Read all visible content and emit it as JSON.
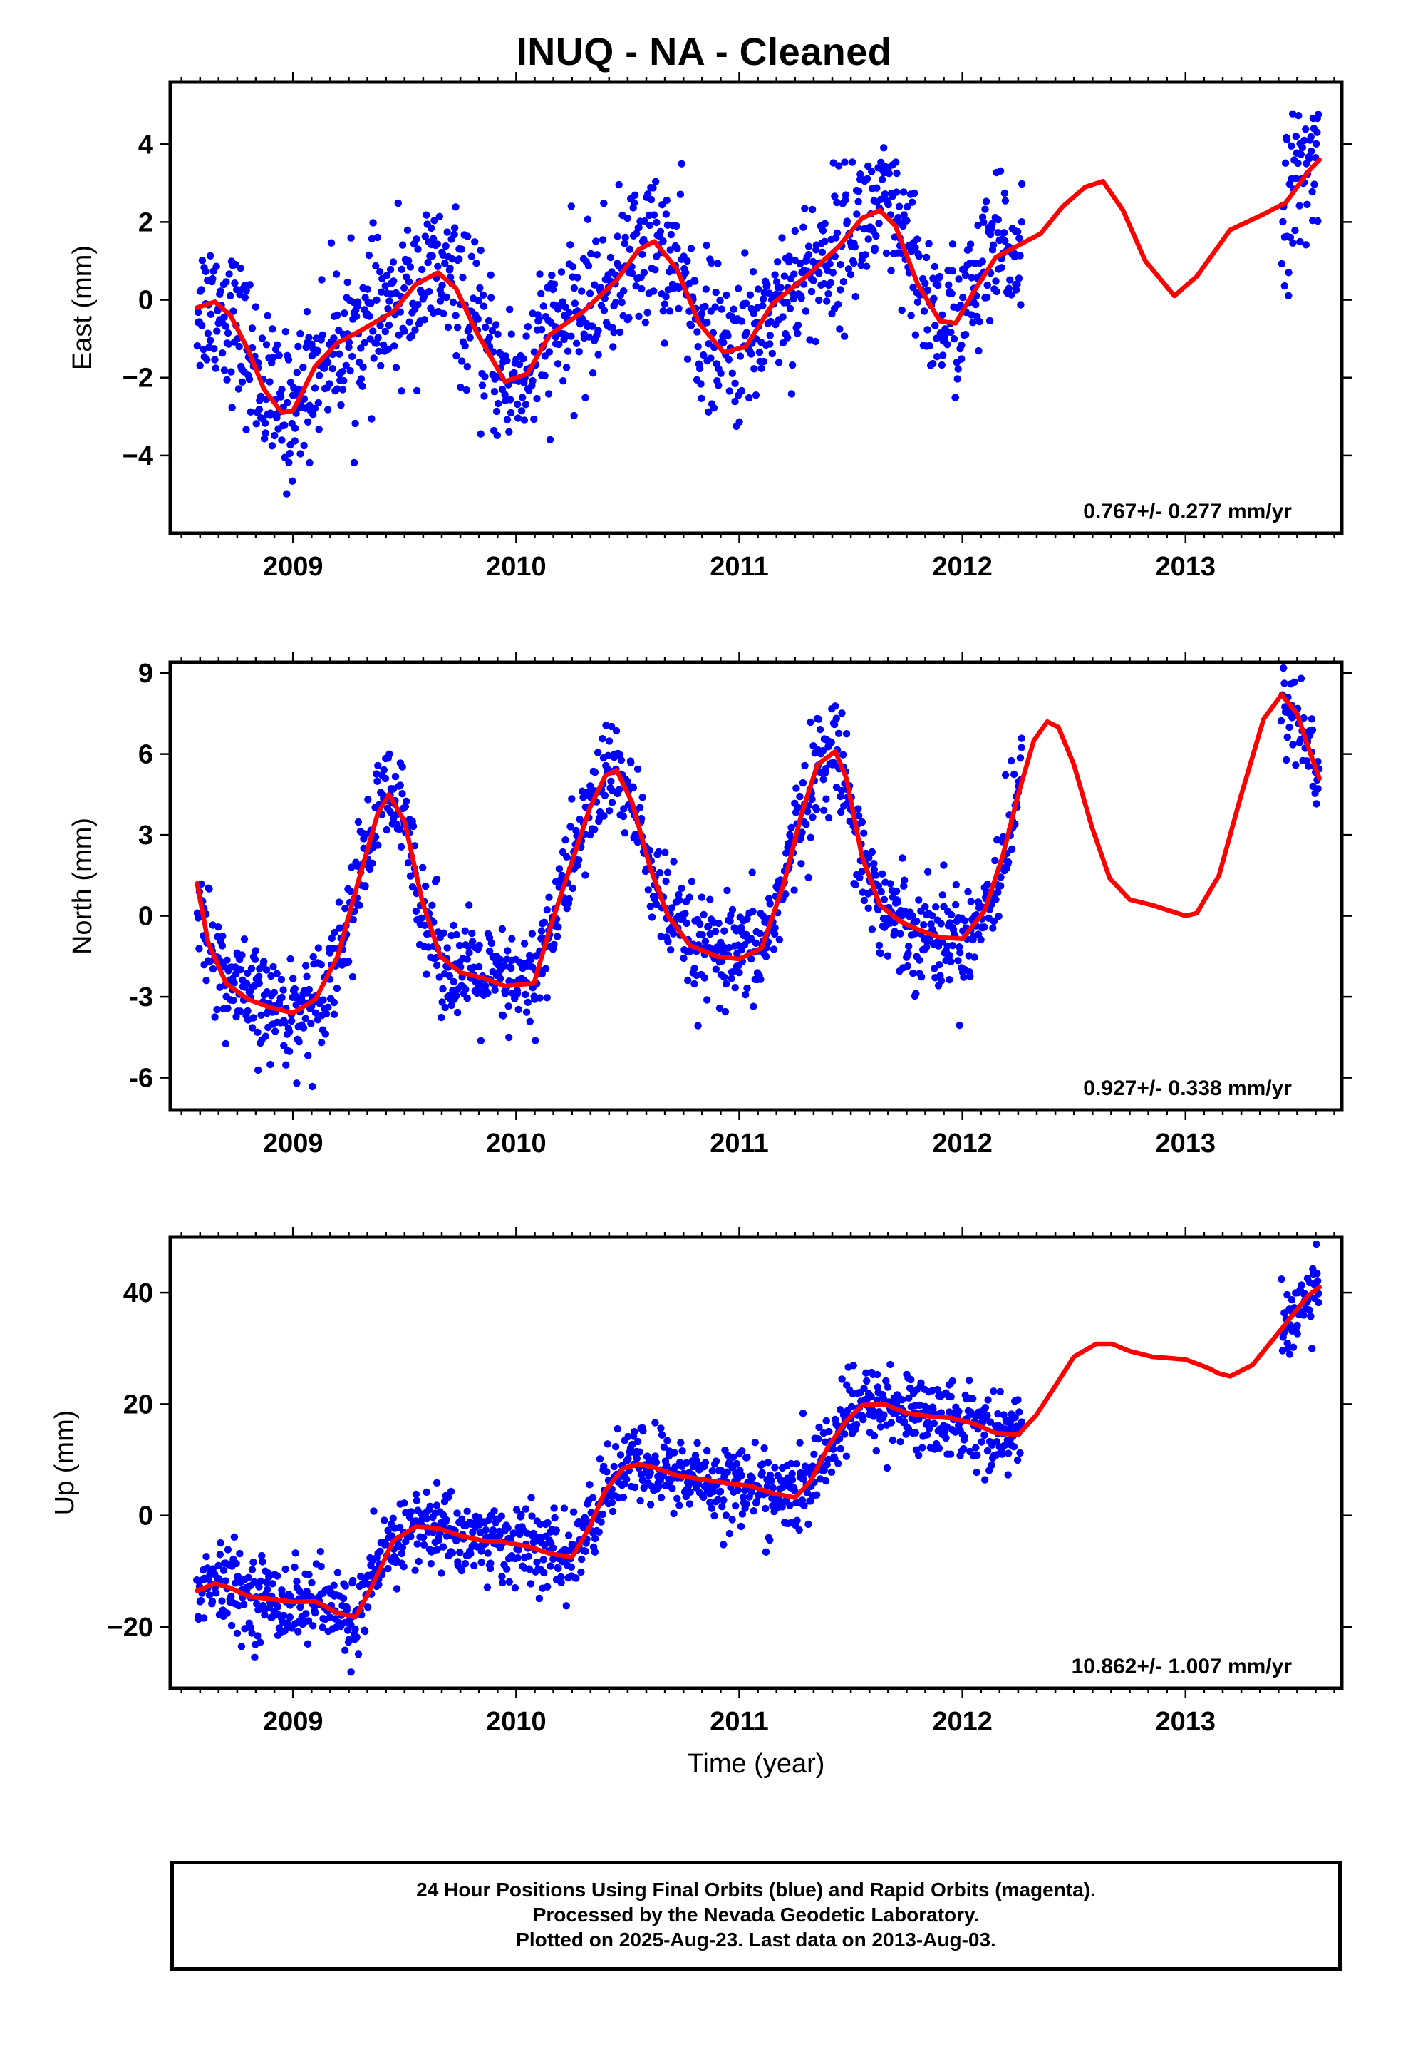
{
  "title": "INUQ  - NA - Cleaned",
  "xlabel": "Time (year)",
  "footer": {
    "line1": "24 Hour Positions Using Final Orbits (blue) and Rapid Orbits (magenta).",
    "line2": "Processed by the Nevada Geodetic Laboratory.",
    "line3": "Plotted on 2025-Aug-23. Last data on 2013-Aug-03."
  },
  "colors": {
    "points": "#0000ff",
    "fit": "#ff0000",
    "frame": "#000000"
  },
  "chart_data": [
    {
      "type": "scatter",
      "ylabel": "East (mm)",
      "xlim": [
        2008.45,
        2013.7
      ],
      "ylim": [
        -6.0,
        5.6
      ],
      "xticks": [
        2009,
        2010,
        2011,
        2012,
        2013
      ],
      "yticks": [
        -4,
        -2,
        0,
        2,
        4
      ],
      "ytick_labels": [
        "−4",
        "−2",
        "0",
        "2",
        "4"
      ],
      "rate_label": "0.767+/- 0.277 mm/yr",
      "point_coverage": [
        [
          2008.57,
          2012.27
        ],
        [
          2013.43,
          2013.6
        ]
      ],
      "scatter_sd": 0.95,
      "series": [
        {
          "role": "fit",
          "x": [
            2008.57,
            2008.65,
            2008.72,
            2008.8,
            2008.87,
            2008.95,
            2009.0,
            2009.1,
            2009.2,
            2009.3,
            2009.45,
            2009.55,
            2009.65,
            2009.73,
            2009.82,
            2009.95,
            2010.05,
            2010.15,
            2010.3,
            2010.45,
            2010.55,
            2010.62,
            2010.72,
            2010.82,
            2010.93,
            2011.03,
            2011.15,
            2011.3,
            2011.45,
            2011.55,
            2011.63,
            2011.7,
            2011.8,
            2011.9,
            2011.97,
            2012.05,
            2012.15,
            2012.25,
            2012.35,
            2012.45,
            2012.55,
            2012.63,
            2012.72,
            2012.82,
            2012.95,
            2013.05,
            2013.2,
            2013.35,
            2013.45,
            2013.55,
            2013.6
          ],
          "y": [
            -0.2,
            -0.05,
            -0.4,
            -1.3,
            -2.3,
            -2.9,
            -2.85,
            -1.7,
            -1.1,
            -0.8,
            -0.3,
            0.4,
            0.7,
            0.3,
            -0.8,
            -2.1,
            -1.9,
            -0.9,
            -0.3,
            0.5,
            1.3,
            1.5,
            0.8,
            -0.6,
            -1.35,
            -1.2,
            -0.1,
            0.6,
            1.4,
            2.1,
            2.3,
            1.9,
            0.4,
            -0.55,
            -0.6,
            0.2,
            1.1,
            1.4,
            1.7,
            2.4,
            2.9,
            3.05,
            2.3,
            1.0,
            0.1,
            0.6,
            1.8,
            2.2,
            2.5,
            3.3,
            3.6
          ]
        }
      ]
    },
    {
      "type": "scatter",
      "ylabel": "North (mm)",
      "xlim": [
        2008.45,
        2013.7
      ],
      "ylim": [
        -7.2,
        9.4
      ],
      "xticks": [
        2009,
        2010,
        2011,
        2012,
        2013
      ],
      "yticks": [
        -6,
        -3,
        0,
        3,
        6,
        9
      ],
      "ytick_labels": [
        "-6",
        "-3",
        "0",
        "3",
        "6",
        "9"
      ],
      "rate_label": "0.927+/- 0.338 mm/yr",
      "point_coverage": [
        [
          2008.57,
          2012.27
        ],
        [
          2013.43,
          2013.6
        ]
      ],
      "scatter_sd": 0.95,
      "series": [
        {
          "role": "fit",
          "x": [
            2008.57,
            2008.62,
            2008.7,
            2008.8,
            2008.9,
            2009.0,
            2009.1,
            2009.2,
            2009.3,
            2009.38,
            2009.43,
            2009.5,
            2009.58,
            2009.66,
            2009.75,
            2009.85,
            2009.95,
            2010.08,
            2010.15,
            2010.25,
            2010.33,
            2010.4,
            2010.45,
            2010.52,
            2010.6,
            2010.68,
            2010.78,
            2010.9,
            2011.0,
            2011.1,
            2011.2,
            2011.28,
            2011.35,
            2011.43,
            2011.48,
            2011.55,
            2011.63,
            2011.72,
            2011.8,
            2011.9,
            2012.0,
            2012.1,
            2012.18,
            2012.25,
            2012.32,
            2012.38,
            2012.43,
            2012.5,
            2012.58,
            2012.66,
            2012.75,
            2012.85,
            2013.0,
            2013.05,
            2013.15,
            2013.25,
            2013.35,
            2013.43,
            2013.5,
            2013.56,
            2013.6
          ],
          "y": [
            1.2,
            -1.0,
            -2.5,
            -3.1,
            -3.4,
            -3.6,
            -3.1,
            -1.5,
            1.5,
            3.8,
            4.5,
            3.5,
            0.5,
            -1.5,
            -2.1,
            -2.3,
            -2.6,
            -2.5,
            -0.5,
            2.0,
            4.0,
            5.2,
            5.4,
            4.2,
            1.8,
            0.0,
            -1.1,
            -1.5,
            -1.6,
            -1.2,
            1.2,
            3.8,
            5.6,
            6.1,
            5.1,
            2.2,
            0.4,
            -0.2,
            -0.5,
            -0.8,
            -0.85,
            0.2,
            2.2,
            4.5,
            6.5,
            7.2,
            7.0,
            5.6,
            3.3,
            1.4,
            0.6,
            0.4,
            0.0,
            0.1,
            1.5,
            4.5,
            7.3,
            8.2,
            7.5,
            6.0,
            5.1
          ]
        }
      ]
    },
    {
      "type": "scatter",
      "ylabel": "Up (mm)",
      "xlim": [
        2008.45,
        2013.7
      ],
      "ylim": [
        -31,
        50
      ],
      "xticks": [
        2009,
        2010,
        2011,
        2012,
        2013
      ],
      "yticks": [
        -20,
        0,
        20,
        40
      ],
      "ytick_labels": [
        "−20",
        "0",
        "20",
        "40"
      ],
      "rate_label": "10.862+/- 1.007 mm/yr",
      "point_coverage": [
        [
          2008.57,
          2012.27
        ],
        [
          2013.43,
          2013.6
        ]
      ],
      "scatter_sd": 3.6,
      "series": [
        {
          "role": "fit",
          "x": [
            2008.57,
            2008.65,
            2008.72,
            2008.8,
            2008.9,
            2009.0,
            2009.1,
            2009.2,
            2009.28,
            2009.35,
            2009.45,
            2009.55,
            2009.65,
            2009.75,
            2009.85,
            2009.95,
            2010.05,
            2010.15,
            2010.25,
            2010.33,
            2010.4,
            2010.48,
            2010.55,
            2010.62,
            2010.72,
            2010.85,
            2010.95,
            2011.05,
            2011.15,
            2011.25,
            2011.32,
            2011.4,
            2011.48,
            2011.55,
            2011.65,
            2011.75,
            2011.85,
            2011.95,
            2012.05,
            2012.15,
            2012.25,
            2012.33,
            2012.42,
            2012.5,
            2012.6,
            2012.67,
            2012.75,
            2012.85,
            2013.0,
            2013.1,
            2013.15,
            2013.2,
            2013.3,
            2013.4,
            2013.5,
            2013.55,
            2013.6
          ],
          "y": [
            -13.5,
            -12.2,
            -13.0,
            -14.5,
            -15.0,
            -15.5,
            -15.4,
            -17.5,
            -18.2,
            -13.0,
            -4.5,
            -2.0,
            -2.3,
            -3.6,
            -4.5,
            -4.8,
            -5.5,
            -6.8,
            -7.5,
            -2.0,
            4.5,
            8.5,
            9.2,
            8.6,
            7.2,
            6.4,
            5.8,
            5.3,
            4.0,
            3.2,
            6.2,
            12.5,
            17.0,
            19.8,
            20.0,
            18.4,
            17.8,
            17.5,
            16.5,
            14.8,
            14.5,
            18.0,
            23.5,
            28.5,
            30.8,
            30.8,
            29.5,
            28.5,
            28.0,
            26.5,
            25.5,
            25.0,
            27.0,
            32.0,
            37.0,
            39.5,
            41.0
          ]
        }
      ]
    }
  ]
}
